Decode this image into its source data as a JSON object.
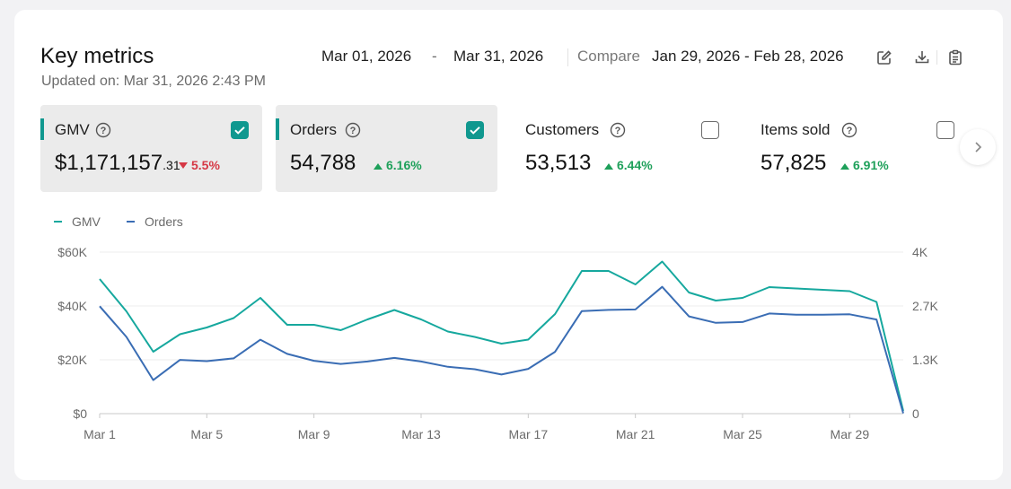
{
  "header": {
    "title": "Key metrics",
    "updated": "Updated on: Mar 31, 2026 2:43 PM",
    "date_start": "Mar 01, 2026",
    "date_sep": "-",
    "date_end": "Mar 31, 2026",
    "compare_label": "Compare",
    "compare_range": "Jan 29, 2026 - Feb 28, 2026"
  },
  "metrics": [
    {
      "label": "GMV",
      "currency": "$",
      "value": "1,171,157",
      "cents": ".31",
      "change": "5.5%",
      "direction": "down",
      "checked": true
    },
    {
      "label": "Orders",
      "value": "54,788",
      "change": "6.16%",
      "direction": "up",
      "checked": true
    },
    {
      "label": "Customers",
      "value": "53,513",
      "change": "6.44%",
      "direction": "up",
      "checked": false
    },
    {
      "label": "Items sold",
      "value": "57,825",
      "change": "6.91%",
      "direction": "up",
      "checked": false
    }
  ],
  "colors": {
    "gmv": "#16a89e",
    "orders": "#3a6db4",
    "accent": "#10988f",
    "down": "#d63845",
    "up": "#1ea05a"
  },
  "chart_data": {
    "type": "line",
    "x": [
      "Mar 1",
      "Mar 2",
      "Mar 3",
      "Mar 4",
      "Mar 5",
      "Mar 6",
      "Mar 7",
      "Mar 8",
      "Mar 9",
      "Mar 10",
      "Mar 11",
      "Mar 12",
      "Mar 13",
      "Mar 14",
      "Mar 15",
      "Mar 16",
      "Mar 17",
      "Mar 18",
      "Mar 19",
      "Mar 20",
      "Mar 21",
      "Mar 22",
      "Mar 23",
      "Mar 24",
      "Mar 25",
      "Mar 26",
      "Mar 27",
      "Mar 28",
      "Mar 29",
      "Mar 30",
      "Mar 31"
    ],
    "x_ticks": [
      "Mar 1",
      "Mar 5",
      "Mar 9",
      "Mar 13",
      "Mar 17",
      "Mar 21",
      "Mar 25",
      "Mar 29"
    ],
    "y_left_ticks": [
      "$0",
      "$20K",
      "$40K",
      "$60K"
    ],
    "y_left_lim": [
      0,
      60000
    ],
    "y_right_ticks": [
      "0",
      "1.3K",
      "2.7K",
      "4K"
    ],
    "y_right_lim": [
      0,
      4000
    ],
    "grid": true,
    "legend": "top-left",
    "series": [
      {
        "name": "GMV",
        "axis": "left",
        "values": [
          50000,
          38000,
          23000,
          29500,
          32000,
          35500,
          43000,
          33000,
          33000,
          31000,
          35000,
          38500,
          35000,
          30500,
          28500,
          26000,
          27500,
          37000,
          53000,
          53000,
          48000,
          56500,
          45000,
          42000,
          43000,
          47000,
          46500,
          46000,
          45500,
          41500,
          1000
        ]
      },
      {
        "name": "Orders",
        "axis": "right",
        "values": [
          2660,
          1900,
          830,
          1330,
          1300,
          1370,
          1830,
          1480,
          1310,
          1230,
          1290,
          1380,
          1290,
          1160,
          1100,
          970,
          1110,
          1530,
          2540,
          2570,
          2580,
          3140,
          2410,
          2250,
          2270,
          2480,
          2450,
          2450,
          2460,
          2330,
          10
        ]
      }
    ]
  }
}
